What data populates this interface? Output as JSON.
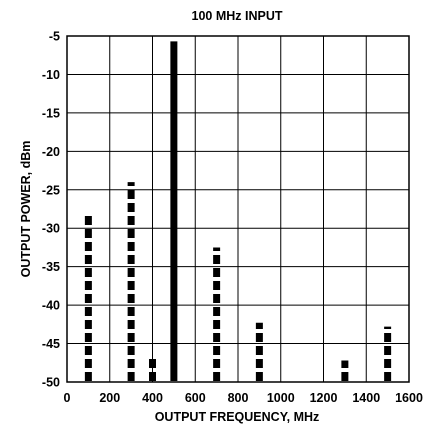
{
  "chart_data": {
    "type": "bar",
    "title": "100 MHz INPUT",
    "xlabel": "OUTPUT FREQUENCY, MHz",
    "ylabel": "OUTPUT POWER, dBm",
    "xlim": [
      0,
      1600
    ],
    "ylim": [
      -50,
      -5
    ],
    "x_ticks": [
      0,
      200,
      400,
      600,
      800,
      1000,
      1200,
      1400,
      1600
    ],
    "y_ticks": [
      -5,
      -10,
      -15,
      -20,
      -25,
      -30,
      -35,
      -40,
      -45,
      -50
    ],
    "x_tick_labels": [
      "0",
      "200",
      "400",
      "600",
      "800",
      "1000",
      "1200",
      "1400",
      "1600"
    ],
    "y_tick_labels": [
      "-5",
      "-10",
      "-15",
      "-20",
      "-25",
      "-30",
      "-35",
      "-40",
      "-45",
      "-50"
    ],
    "grid": true,
    "series": [
      {
        "values": [
          {
            "x": 100,
            "y": -28,
            "style": "dashed"
          },
          {
            "x": 300,
            "y": -24,
            "style": "dashed"
          },
          {
            "x": 400,
            "y": -47,
            "style": "dashed"
          },
          {
            "x": 500,
            "y": -5.7,
            "style": "solid"
          },
          {
            "x": 700,
            "y": -32.5,
            "style": "dashed"
          },
          {
            "x": 900,
            "y": -42.3,
            "style": "dashed"
          },
          {
            "x": 1300,
            "y": -47.2,
            "style": "dashed"
          },
          {
            "x": 1500,
            "y": -42.8,
            "style": "dashed"
          }
        ]
      }
    ],
    "colors": {
      "bar": "#000000",
      "grid": "#000000",
      "background": "#ffffff"
    }
  }
}
